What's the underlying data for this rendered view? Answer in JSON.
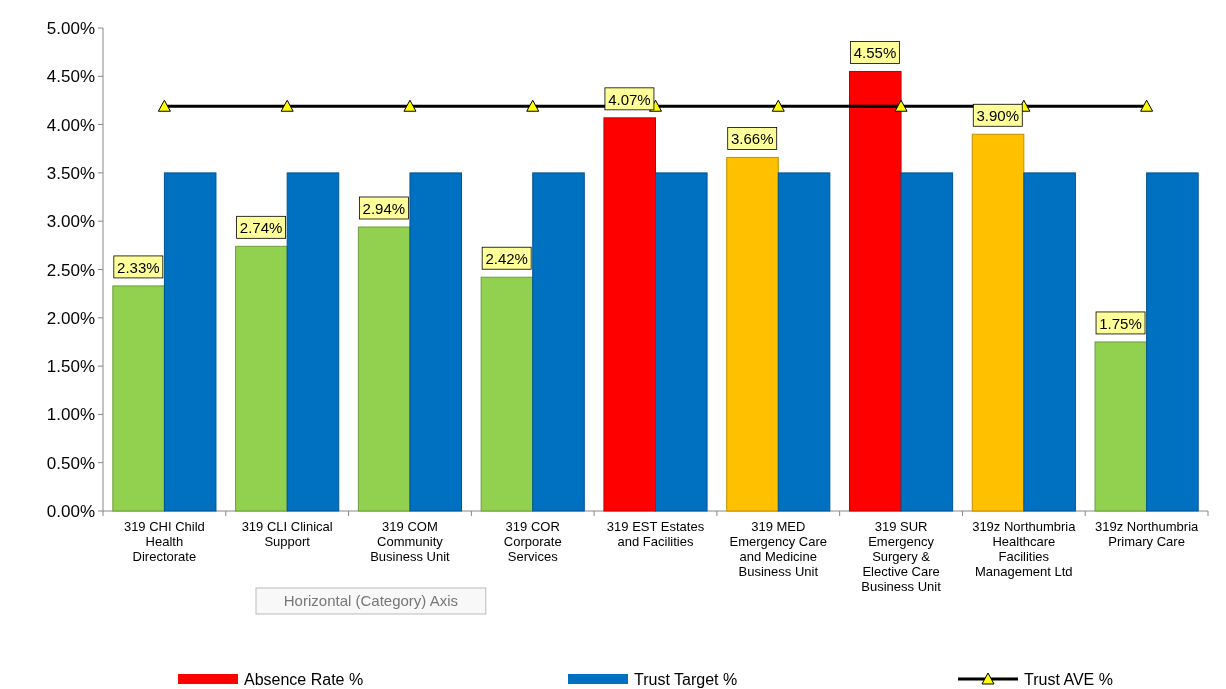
{
  "chart_data": {
    "type": "bar",
    "categories": [
      "319 CHI Child Health Directorate",
      "319 CLI Clinical Support",
      "319 COM Community Business Unit",
      "319 COR Corporate Services",
      "319 EST Estates and Facilities",
      "319 MED Emergency Care and Medicine Business Unit",
      "319 SUR Emergency Surgery & Elective Care Business Unit",
      "319z Northumbria Healthcare Facilities Management Ltd",
      "319z Northumbria Primary Care"
    ],
    "series": [
      {
        "name": "Absence Rate %",
        "color": "#ff0000",
        "colors": [
          "#92d050",
          "#92d050",
          "#92d050",
          "#92d050",
          "#ff0000",
          "#ffc000",
          "#ff0000",
          "#ffc000",
          "#92d050"
        ],
        "values": [
          2.33,
          2.74,
          2.94,
          2.42,
          4.07,
          3.66,
          4.55,
          3.9,
          1.75
        ],
        "value_labels": [
          "2.33%",
          "2.74%",
          "2.94%",
          "2.42%",
          "4.07%",
          "3.66%",
          "4.55%",
          "3.90%",
          "1.75%"
        ]
      },
      {
        "name": "Trust Target %",
        "color": "#0070c0",
        "values": [
          3.5,
          3.5,
          3.5,
          3.5,
          3.5,
          3.5,
          3.5,
          3.5,
          3.5
        ]
      },
      {
        "name": "Trust AVE %",
        "type": "line",
        "color": "#000000",
        "marker": "triangle",
        "values": [
          4.19,
          4.19,
          4.19,
          4.19,
          4.19,
          4.19,
          4.19,
          4.19,
          4.19
        ]
      }
    ],
    "ylim": [
      0,
      5
    ],
    "yticks": [
      {
        "value": 0,
        "label": "0.00%"
      },
      {
        "value": 0.5,
        "label": "0.50%"
      },
      {
        "value": 1,
        "label": "1.00%"
      },
      {
        "value": 1.5,
        "label": "1.50%"
      },
      {
        "value": 2,
        "label": "2.00%"
      },
      {
        "value": 2.5,
        "label": "2.50%"
      },
      {
        "value": 3,
        "label": "3.00%"
      },
      {
        "value": 3.5,
        "label": "3.50%"
      },
      {
        "value": 4,
        "label": "4.00%"
      },
      {
        "value": 4.5,
        "label": "4.50%"
      },
      {
        "value": 5,
        "label": "5.00%"
      }
    ],
    "legend": "bottom",
    "annotations": [
      "Horizontal (Category) Axis"
    ]
  }
}
